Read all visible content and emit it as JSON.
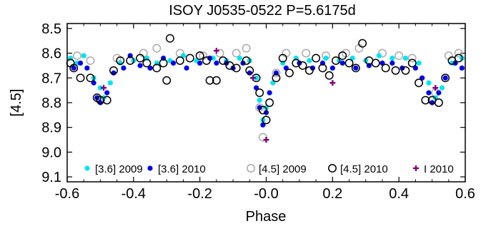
{
  "chart_data": {
    "type": "scatter",
    "title": "ISOY J0535-0522 P=5.6175d",
    "xlabel": "Phase",
    "ylabel": "[4.5]",
    "xlim": [
      -0.6,
      0.6
    ],
    "ylim": [
      9.12,
      8.48
    ],
    "y_inverted": true,
    "grid": false,
    "legend_position": "bottom",
    "x_ticks": [
      {
        "value": -0.6,
        "label": "-0.6"
      },
      {
        "value": -0.4,
        "label": "-0.4"
      },
      {
        "value": -0.2,
        "label": "-0.2"
      },
      {
        "value": 0.0,
        "label": "-0.0"
      },
      {
        "value": 0.2,
        "label": "0.2"
      },
      {
        "value": 0.4,
        "label": "0.4"
      },
      {
        "value": 0.6,
        "label": "0.6"
      }
    ],
    "y_ticks": [
      {
        "value": 8.5,
        "label": "8.5"
      },
      {
        "value": 8.6,
        "label": "8.6"
      },
      {
        "value": 8.7,
        "label": "8.7"
      },
      {
        "value": 8.8,
        "label": "8.8"
      },
      {
        "value": 8.9,
        "label": "8.9"
      },
      {
        "value": 9.0,
        "label": "9.0"
      },
      {
        "value": 9.1,
        "label": "9.1"
      }
    ],
    "series": [
      {
        "name": "[3.6] 2009",
        "marker": "filled-circle",
        "color": "#00e5ee",
        "points": [
          [
            -0.59,
            8.62
          ],
          [
            -0.57,
            8.64
          ],
          [
            -0.55,
            8.61
          ],
          [
            -0.52,
            8.7
          ],
          [
            -0.5,
            8.74
          ],
          [
            -0.49,
            8.78
          ],
          [
            -0.47,
            8.72
          ],
          [
            -0.44,
            8.64
          ],
          [
            -0.4,
            8.63
          ],
          [
            -0.36,
            8.62
          ],
          [
            -0.33,
            8.64
          ],
          [
            -0.29,
            8.63
          ],
          [
            -0.25,
            8.61
          ],
          [
            -0.21,
            8.63
          ],
          [
            -0.16,
            8.62
          ],
          [
            -0.12,
            8.63
          ],
          [
            -0.08,
            8.62
          ],
          [
            -0.05,
            8.63
          ],
          [
            -0.03,
            8.7
          ],
          [
            -0.02,
            8.79
          ],
          [
            -0.01,
            8.87
          ],
          [
            0.0,
            8.82
          ],
          [
            0.02,
            8.72
          ],
          [
            0.05,
            8.64
          ],
          [
            0.09,
            8.62
          ],
          [
            0.13,
            8.63
          ],
          [
            0.18,
            8.62
          ],
          [
            0.22,
            8.63
          ],
          [
            0.26,
            8.62
          ],
          [
            0.3,
            8.63
          ],
          [
            0.34,
            8.61
          ],
          [
            0.38,
            8.62
          ],
          [
            0.42,
            8.62
          ],
          [
            0.46,
            8.64
          ],
          [
            0.49,
            8.72
          ],
          [
            0.51,
            8.78
          ],
          [
            0.53,
            8.74
          ],
          [
            0.56,
            8.64
          ],
          [
            0.59,
            8.62
          ]
        ]
      },
      {
        "name": "[3.6] 2010",
        "marker": "filled-circle",
        "color": "#0000ee",
        "points": [
          [
            -0.58,
            8.66
          ],
          [
            -0.56,
            8.64
          ],
          [
            -0.54,
            8.66
          ],
          [
            -0.52,
            8.72
          ],
          [
            -0.51,
            8.78
          ],
          [
            -0.5,
            8.8
          ],
          [
            -0.48,
            8.76
          ],
          [
            -0.46,
            8.68
          ],
          [
            -0.43,
            8.66
          ],
          [
            -0.41,
            8.61
          ],
          [
            -0.38,
            8.65
          ],
          [
            -0.35,
            8.66
          ],
          [
            -0.31,
            8.62
          ],
          [
            -0.28,
            8.64
          ],
          [
            -0.24,
            8.66
          ],
          [
            -0.2,
            8.64
          ],
          [
            -0.17,
            8.62
          ],
          [
            -0.15,
            8.64
          ],
          [
            -0.12,
            8.64
          ],
          [
            -0.1,
            8.66
          ],
          [
            -0.07,
            8.64
          ],
          [
            -0.05,
            8.68
          ],
          [
            -0.03,
            8.74
          ],
          [
            -0.02,
            8.82
          ],
          [
            -0.01,
            8.89
          ],
          [
            0.0,
            8.84
          ],
          [
            0.01,
            8.76
          ],
          [
            0.03,
            8.68
          ],
          [
            0.06,
            8.66
          ],
          [
            0.1,
            8.64
          ],
          [
            0.14,
            8.66
          ],
          [
            0.17,
            8.64
          ],
          [
            0.2,
            8.66
          ],
          [
            0.23,
            8.64
          ],
          [
            0.27,
            8.66
          ],
          [
            0.31,
            8.65
          ],
          [
            0.35,
            8.64
          ],
          [
            0.38,
            8.64
          ],
          [
            0.41,
            8.66
          ],
          [
            0.45,
            8.66
          ],
          [
            0.47,
            8.7
          ],
          [
            0.49,
            8.76
          ],
          [
            0.5,
            8.8
          ],
          [
            0.52,
            8.76
          ],
          [
            0.54,
            8.7
          ],
          [
            0.57,
            8.64
          ],
          [
            0.59,
            8.66
          ]
        ]
      },
      {
        "name": "[4.5] 2009",
        "marker": "open-circle",
        "color": "#aaaaaa",
        "points": [
          [
            -0.57,
            8.61
          ],
          [
            -0.53,
            8.63
          ],
          [
            -0.45,
            8.62
          ],
          [
            -0.37,
            8.6
          ],
          [
            -0.33,
            8.58
          ],
          [
            -0.26,
            8.6
          ],
          [
            -0.19,
            8.61
          ],
          [
            -0.14,
            8.6
          ],
          [
            -0.09,
            8.6
          ],
          [
            -0.06,
            8.58
          ],
          [
            -0.02,
            8.82
          ],
          [
            -0.01,
            8.94
          ],
          [
            0.03,
            8.68
          ],
          [
            0.06,
            8.6
          ],
          [
            0.12,
            8.6
          ],
          [
            0.18,
            8.61
          ],
          [
            0.24,
            8.6
          ],
          [
            0.28,
            8.58
          ],
          [
            0.35,
            8.6
          ],
          [
            0.4,
            8.61
          ],
          [
            0.44,
            8.62
          ],
          [
            0.51,
            8.76
          ],
          [
            0.55,
            8.61
          ],
          [
            0.58,
            8.6
          ]
        ]
      },
      {
        "name": "[4.5] 2010",
        "marker": "open-circle",
        "color": "#000000",
        "points": [
          [
            -0.59,
            8.64
          ],
          [
            -0.58,
            8.66
          ],
          [
            -0.56,
            8.7
          ],
          [
            -0.53,
            8.7
          ],
          [
            -0.51,
            8.78
          ],
          [
            -0.5,
            8.79
          ],
          [
            -0.48,
            8.79
          ],
          [
            -0.46,
            8.67
          ],
          [
            -0.44,
            8.63
          ],
          [
            -0.41,
            8.63
          ],
          [
            -0.38,
            8.62
          ],
          [
            -0.36,
            8.64
          ],
          [
            -0.33,
            8.66
          ],
          [
            -0.31,
            8.64
          ],
          [
            -0.3,
            8.71
          ],
          [
            -0.29,
            8.54
          ],
          [
            -0.26,
            8.63
          ],
          [
            -0.23,
            8.62
          ],
          [
            -0.2,
            8.61
          ],
          [
            -0.18,
            8.63
          ],
          [
            -0.17,
            8.71
          ],
          [
            -0.15,
            8.71
          ],
          [
            -0.13,
            8.63
          ],
          [
            -0.11,
            8.65
          ],
          [
            -0.09,
            8.66
          ],
          [
            -0.06,
            8.63
          ],
          [
            -0.05,
            8.67
          ],
          [
            -0.03,
            8.7
          ],
          [
            -0.02,
            8.76
          ],
          [
            -0.01,
            8.83
          ],
          [
            0.0,
            8.87
          ],
          [
            0.01,
            8.8
          ],
          [
            0.03,
            8.7
          ],
          [
            0.05,
            8.62
          ],
          [
            0.07,
            8.68
          ],
          [
            0.09,
            8.64
          ],
          [
            0.11,
            8.65
          ],
          [
            0.13,
            8.67
          ],
          [
            0.15,
            8.62
          ],
          [
            0.17,
            8.66
          ],
          [
            0.19,
            8.69
          ],
          [
            0.21,
            8.63
          ],
          [
            0.23,
            8.61
          ],
          [
            0.25,
            8.64
          ],
          [
            0.27,
            8.66
          ],
          [
            0.29,
            8.56
          ],
          [
            0.31,
            8.63
          ],
          [
            0.33,
            8.64
          ],
          [
            0.36,
            8.66
          ],
          [
            0.39,
            8.67
          ],
          [
            0.42,
            8.67
          ],
          [
            0.44,
            8.64
          ],
          [
            0.46,
            8.72
          ],
          [
            0.48,
            8.79
          ],
          [
            0.5,
            8.79
          ],
          [
            0.52,
            8.8
          ],
          [
            0.54,
            8.7
          ],
          [
            0.56,
            8.63
          ],
          [
            0.58,
            8.62
          ]
        ]
      },
      {
        "name": "I 2010",
        "marker": "plus",
        "color": "#800080",
        "points": [
          [
            -0.49,
            8.74
          ],
          [
            -0.15,
            8.59
          ],
          [
            -0.04,
            8.7
          ],
          [
            0.0,
            8.95
          ],
          [
            0.2,
            8.72
          ],
          [
            0.51,
            8.74
          ]
        ]
      }
    ]
  }
}
